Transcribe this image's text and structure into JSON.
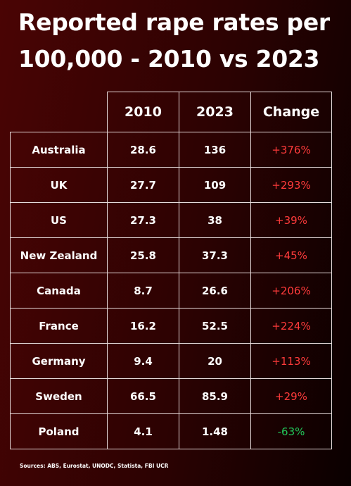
{
  "title": "Reported rape rates per 100,000 - 2010 vs 2023",
  "sources": "Sources: ABS, Eurostat, UNODC, Statista, FBI UCR",
  "colors": {
    "increase": "#ff3b3b",
    "decrease": "#22c75a",
    "grid": "#e6dada"
  },
  "chart_data": {
    "type": "table",
    "title": "Reported rape rates per 100,000 - 2010 vs 2023",
    "columns": [
      "",
      "2010",
      "2023",
      "Change"
    ],
    "rows": [
      {
        "country": "Australia",
        "v2010": "28.6",
        "v2023": "136",
        "change": "+376%"
      },
      {
        "country": "UK",
        "v2010": "27.7",
        "v2023": "109",
        "change": "+293%"
      },
      {
        "country": "US",
        "v2010": "27.3",
        "v2023": "38",
        "change": "+39%"
      },
      {
        "country": "New Zealand",
        "v2010": "25.8",
        "v2023": "37.3",
        "change": "+45%"
      },
      {
        "country": "Canada",
        "v2010": "8.7",
        "v2023": "26.6",
        "change": "+206%"
      },
      {
        "country": "France",
        "v2010": "16.2",
        "v2023": "52.5",
        "change": "+224%"
      },
      {
        "country": "Germany",
        "v2010": "9.4",
        "v2023": "20",
        "change": "+113%"
      },
      {
        "country": "Sweden",
        "v2010": "66.5",
        "v2023": "85.9",
        "change": "+29%"
      },
      {
        "country": "Poland",
        "v2010": "4.1",
        "v2023": "1.48",
        "change": "-63%"
      }
    ]
  }
}
